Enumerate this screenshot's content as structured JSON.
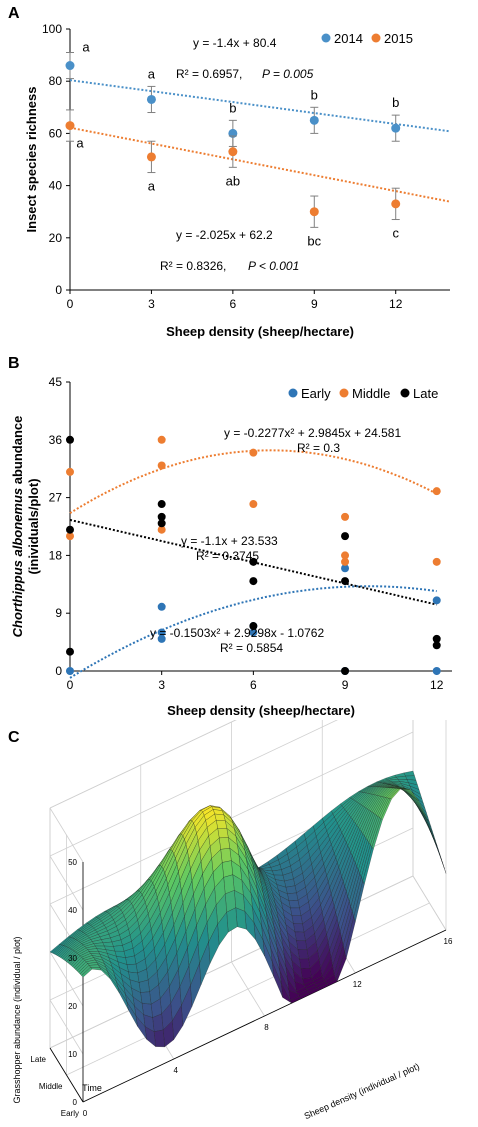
{
  "colors": {
    "c2014": "#4a90c8",
    "c2015": "#ed7d31",
    "early": "#2e75b6",
    "middle": "#ed7d31",
    "late": "#000000",
    "err": "#808080",
    "axis": "#000000"
  },
  "panel_labels": {
    "a": "A",
    "b": "B",
    "c": "C"
  },
  "chart_data": [
    {
      "id": "A",
      "type": "scatter",
      "title": "",
      "xlabel": "Sheep density (sheep/hectare)",
      "ylabel": "Insect species richness",
      "xlim": [
        0,
        14
      ],
      "ylim": [
        0,
        100
      ],
      "xticks": [
        0,
        3,
        6,
        9,
        12
      ],
      "yticks": [
        0,
        20,
        40,
        60,
        80,
        100
      ],
      "legend_position": "top-right",
      "series": [
        {
          "name": "2014",
          "x": [
            0,
            3,
            6,
            9,
            12
          ],
          "y": [
            86,
            73,
            60,
            65,
            62
          ],
          "err": [
            5,
            5,
            5,
            5,
            5
          ],
          "letters": [
            "a",
            "a",
            "b",
            "b",
            "b"
          ],
          "trend": {
            "slope": -1.4,
            "intercept": 80.4
          }
        },
        {
          "name": "2015",
          "x": [
            0,
            3,
            6,
            9,
            12
          ],
          "y": [
            63,
            51,
            53,
            30,
            33
          ],
          "err": [
            6,
            6,
            6,
            6,
            6
          ],
          "letters": [
            "a",
            "a",
            "ab",
            "bc",
            "c"
          ],
          "trend": {
            "slope": -2.025,
            "intercept": 62.2
          }
        }
      ],
      "annotations": {
        "eq2014": "y = -1.4x + 80.4",
        "r2014": "R² = 0.6957,",
        "p2014": "P = 0.005",
        "eq2015": "y = -2.025x + 62.2",
        "r2015": "R² = 0.8326,",
        "p2015": "P < 0.001"
      }
    },
    {
      "id": "B",
      "type": "scatter",
      "title": "",
      "xlabel": "Sheep density (sheep/hectare)",
      "ylabel_italic": "Chorthippus albonemus",
      "ylabel_rest": " abundance",
      "ylabel_line2": "(inividuals/plot)",
      "xlim": [
        0,
        12.5
      ],
      "ylim": [
        0,
        45
      ],
      "xticks": [
        0,
        3,
        6,
        9,
        12
      ],
      "yticks": [
        0,
        9,
        18,
        27,
        36,
        45
      ],
      "legend_position": "top-right",
      "series": [
        {
          "name": "Early",
          "x": [
            0,
            3,
            3,
            3,
            6,
            6,
            9,
            9,
            12,
            12
          ],
          "y": [
            0,
            10,
            6,
            5,
            7,
            6,
            16,
            0,
            11,
            0
          ],
          "fit": [
            -0.1503,
            2.9298,
            -1.0762
          ]
        },
        {
          "name": "Middle",
          "x": [
            0,
            0,
            3,
            3,
            3,
            6,
            6,
            9,
            9,
            9,
            12,
            12
          ],
          "y": [
            31,
            21,
            36,
            32,
            22,
            34,
            26,
            24,
            18,
            17,
            28,
            17
          ],
          "fit": [
            -0.2277,
            2.9845,
            24.581
          ]
        },
        {
          "name": "Late",
          "x": [
            0,
            0,
            0,
            3,
            3,
            3,
            6,
            6,
            6,
            9,
            9,
            9,
            12,
            12
          ],
          "y": [
            36,
            22,
            3,
            26,
            24,
            23,
            17,
            14,
            7,
            21,
            14,
            0,
            5,
            4
          ],
          "fit": [
            0,
            -1.1,
            23.533
          ]
        }
      ],
      "annotations": {
        "eqMiddle": "y = -0.2277x² + 2.9845x + 24.581",
        "rMiddle": "R² = 0.3",
        "eqLate": "y = -1.1x + 23.533",
        "rLate": "R² = 0.3745",
        "eqEarly": "y = -0.1503x² + 2.9298x - 1.0762",
        "rEarly": "R² = 0.5854"
      }
    },
    {
      "id": "C",
      "type": "surface",
      "title": "",
      "zlabel": "Grasshopper abundance (individual / plot)",
      "xlabel": "Sheep density (individual / plot)",
      "ylabel": "Time",
      "zticks": [
        0,
        10,
        20,
        30,
        40,
        50
      ],
      "xticks": [
        0,
        4,
        8,
        12,
        16
      ],
      "yticks": [
        "Early",
        "Middle",
        "Late"
      ]
    }
  ]
}
